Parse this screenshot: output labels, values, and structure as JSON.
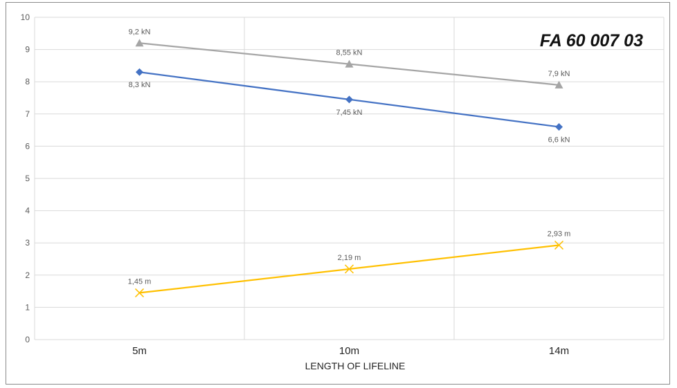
{
  "chart_data": {
    "type": "line",
    "title": "FA 60 007 03",
    "xlabel": "LENGTH OF LIFELINE",
    "ylabel": "",
    "categories": [
      "5m",
      "10m",
      "14m"
    ],
    "ylim": [
      0,
      10
    ],
    "yticks": [
      "0",
      "1",
      "2",
      "3",
      "4",
      "5",
      "6",
      "7",
      "8",
      "9",
      "10"
    ],
    "grid": true,
    "legend": "none",
    "series": [
      {
        "values": [
          9.2,
          8.55,
          7.9
        ],
        "data_labels": [
          "9,2 kN",
          "8,55 kN",
          "7,9 kN"
        ],
        "label_position": "above",
        "color": "#a5a5a5",
        "marker": "triangle"
      },
      {
        "values": [
          8.3,
          7.45,
          6.6
        ],
        "data_labels": [
          "8,3 kN",
          "7,45 kN",
          "6,6 kN"
        ],
        "label_position": "below",
        "color": "#4472c4",
        "marker": "diamond"
      },
      {
        "values": [
          1.45,
          2.19,
          2.93
        ],
        "data_labels": [
          "1,45 m",
          "2,19 m",
          "2,93 m"
        ],
        "label_position": "above",
        "color": "#ffc000",
        "marker": "x"
      }
    ]
  }
}
